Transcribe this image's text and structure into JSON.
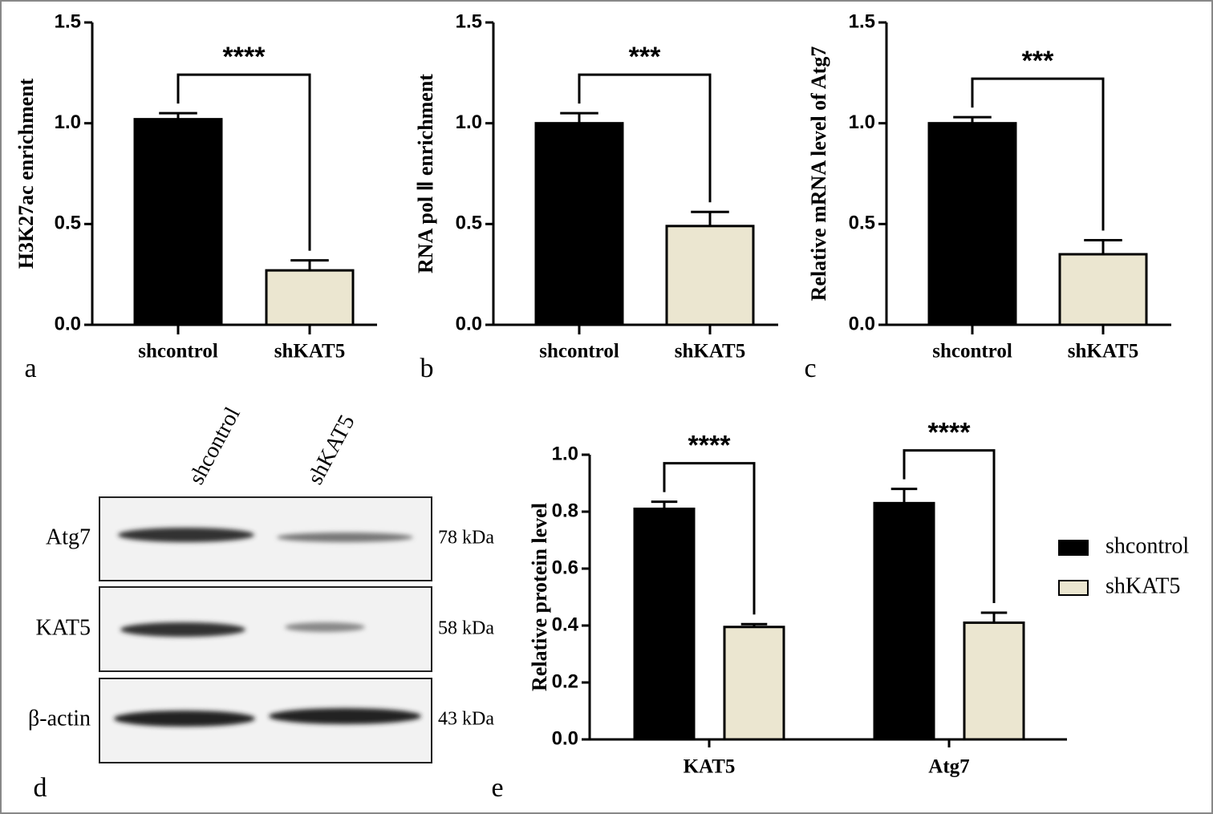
{
  "chart_data": [
    {
      "type": "bar",
      "panel": "a",
      "ylabel": "H3K27ac enrichment",
      "categories": [
        "shcontrol",
        "shKAT5"
      ],
      "values": [
        1.02,
        0.27
      ],
      "errors": [
        0.03,
        0.05
      ],
      "colors": [
        "#000000",
        "#ebe6d0"
      ],
      "ylim": [
        0,
        1.5
      ],
      "yticks": [
        {
          "value": 0,
          "label": "0.0"
        },
        0.5,
        {
          "value": 1,
          "label": "1.0"
        },
        1.5
      ],
      "annotations": [
        {
          "text": "****"
        }
      ]
    },
    {
      "type": "bar",
      "panel": "b",
      "ylabel": "RNA pol Ⅱ enrichment",
      "categories": [
        "shcontrol",
        "shKAT5"
      ],
      "values": [
        1.0,
        0.49
      ],
      "errors": [
        0.05,
        0.07
      ],
      "colors": [
        "#000000",
        "#ebe6d0"
      ],
      "ylim": [
        0,
        1.5
      ],
      "yticks": [
        {
          "value": 0,
          "label": "0.0"
        },
        0.5,
        {
          "value": 1,
          "label": "1.0"
        },
        1.5
      ],
      "annotations": [
        {
          "text": "***"
        }
      ]
    },
    {
      "type": "bar",
      "panel": "c",
      "ylabel": "Relative mRNA level of Atg7",
      "categories": [
        "shcontrol",
        "shKAT5"
      ],
      "values": [
        1.0,
        0.35
      ],
      "errors": [
        0.03,
        0.07
      ],
      "colors": [
        "#000000",
        "#ebe6d0"
      ],
      "ylim": [
        0,
        1.5
      ],
      "yticks": [
        {
          "value": 0,
          "label": "0.0"
        },
        0.5,
        {
          "value": 1,
          "label": "1.0"
        },
        1.5
      ],
      "annotations": [
        {
          "text": "***"
        }
      ]
    },
    {
      "type": "grouped-bar",
      "panel": "e",
      "ylabel": "Relative protein level",
      "categories": [
        "KAT5",
        "Atg7"
      ],
      "series": [
        {
          "name": "shcontrol",
          "color": "#000000",
          "values": [
            0.81,
            0.83
          ],
          "errors": [
            0.025,
            0.05
          ]
        },
        {
          "name": "shKAT5",
          "color": "#ebe6d0",
          "values": [
            0.395,
            0.41
          ],
          "errors": [
            0.01,
            0.035
          ]
        }
      ],
      "ylim": [
        0,
        1.0
      ],
      "yticks": [
        {
          "value": 0,
          "label": "0.0"
        },
        0.2,
        0.4,
        0.6,
        0.8,
        {
          "value": 1,
          "label": "1.0"
        }
      ],
      "annotations": [
        {
          "text": "****"
        },
        {
          "text": "****"
        }
      ],
      "legend": "right"
    }
  ],
  "blot": {
    "panel": "d",
    "lanes": [
      "shcontrol",
      "shKAT5"
    ],
    "bands": [
      {
        "name": "Atg7",
        "size": "78 kDa"
      },
      {
        "name": "KAT5",
        "size": "58 kDa"
      },
      {
        "name": "β-actin",
        "size": "43 kDa"
      }
    ]
  }
}
